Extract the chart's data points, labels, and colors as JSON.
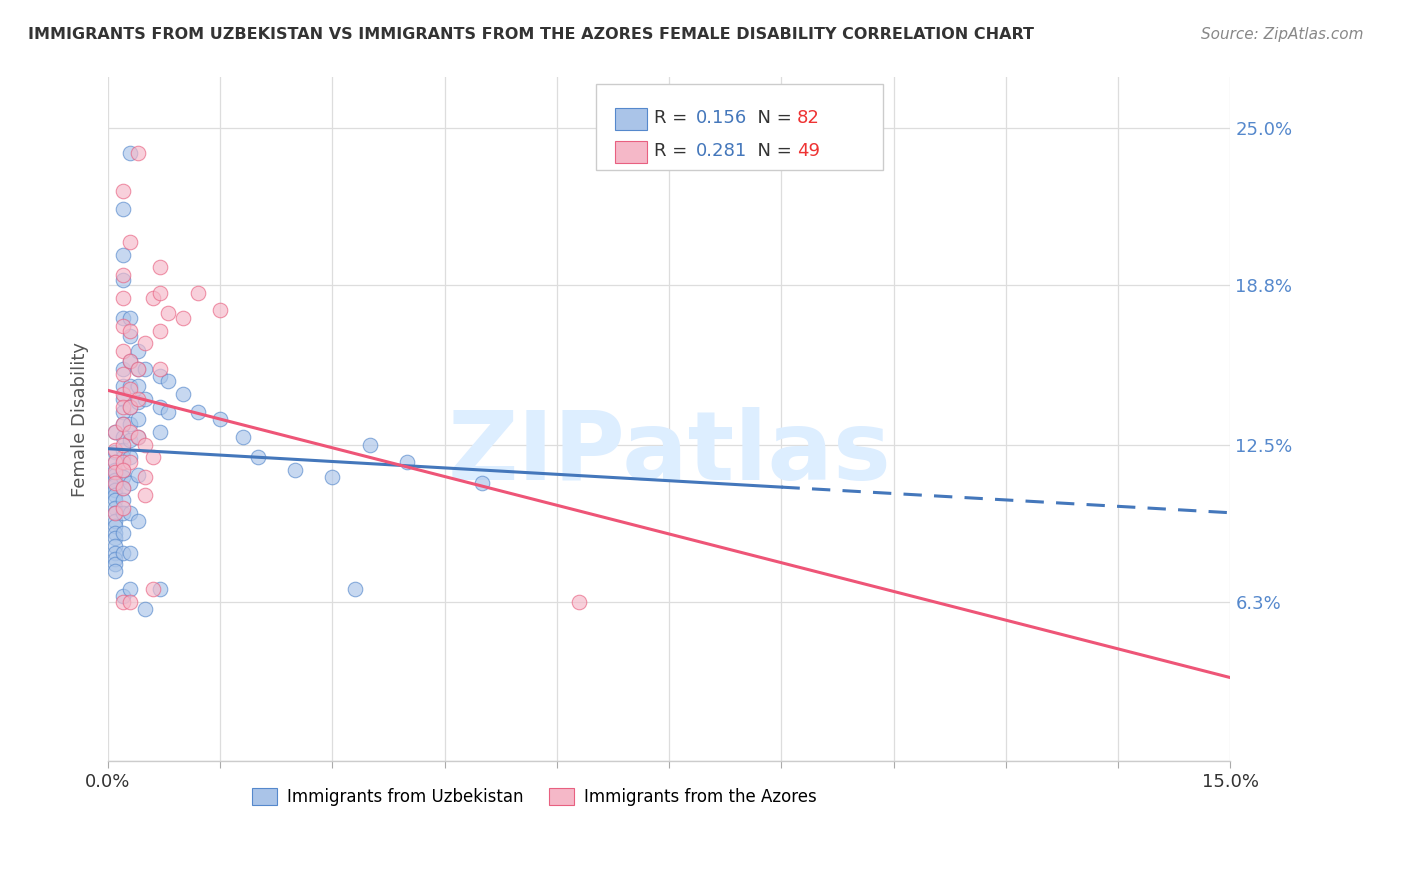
{
  "title": "IMMIGRANTS FROM UZBEKISTAN VS IMMIGRANTS FROM THE AZORES FEMALE DISABILITY CORRELATION CHART",
  "source": "Source: ZipAtlas.com",
  "ylabel": "Female Disability",
  "xlim": [
    0.0,
    0.15
  ],
  "ylim": [
    0.0,
    0.27
  ],
  "blue_R": "0.156",
  "blue_N": "82",
  "pink_R": "0.281",
  "pink_N": "49",
  "blue_color": "#aac4e8",
  "pink_color": "#f5b8c8",
  "blue_edge_color": "#5588cc",
  "pink_edge_color": "#e86080",
  "blue_line_color": "#4477BB",
  "pink_line_color": "#EE5577",
  "background_color": "#ffffff",
  "grid_color": "#dddddd",
  "blue_scatter_x": [
    0.001,
    0.001,
    0.001,
    0.001,
    0.001,
    0.001,
    0.001,
    0.001,
    0.001,
    0.001,
    0.001,
    0.001,
    0.001,
    0.001,
    0.001,
    0.001,
    0.001,
    0.001,
    0.001,
    0.001,
    0.001,
    0.002,
    0.002,
    0.002,
    0.002,
    0.002,
    0.002,
    0.002,
    0.002,
    0.002,
    0.002,
    0.002,
    0.002,
    0.002,
    0.002,
    0.002,
    0.002,
    0.002,
    0.002,
    0.002,
    0.002,
    0.003,
    0.003,
    0.003,
    0.003,
    0.003,
    0.003,
    0.003,
    0.003,
    0.003,
    0.003,
    0.003,
    0.003,
    0.003,
    0.004,
    0.004,
    0.004,
    0.004,
    0.004,
    0.004,
    0.004,
    0.004,
    0.005,
    0.005,
    0.005,
    0.007,
    0.007,
    0.007,
    0.007,
    0.008,
    0.008,
    0.01,
    0.012,
    0.015,
    0.018,
    0.02,
    0.025,
    0.03,
    0.033,
    0.035,
    0.04,
    0.05
  ],
  "blue_scatter_y": [
    0.13,
    0.122,
    0.118,
    0.115,
    0.113,
    0.111,
    0.109,
    0.107,
    0.105,
    0.103,
    0.1,
    0.098,
    0.095,
    0.093,
    0.09,
    0.088,
    0.085,
    0.082,
    0.08,
    0.078,
    0.075,
    0.218,
    0.2,
    0.19,
    0.175,
    0.155,
    0.148,
    0.143,
    0.138,
    0.133,
    0.128,
    0.123,
    0.12,
    0.115,
    0.112,
    0.108,
    0.103,
    0.098,
    0.09,
    0.082,
    0.065,
    0.24,
    0.175,
    0.168,
    0.158,
    0.148,
    0.14,
    0.133,
    0.127,
    0.12,
    0.11,
    0.098,
    0.082,
    0.068,
    0.162,
    0.155,
    0.148,
    0.142,
    0.135,
    0.128,
    0.113,
    0.095,
    0.155,
    0.143,
    0.06,
    0.152,
    0.14,
    0.13,
    0.068,
    0.15,
    0.138,
    0.145,
    0.138,
    0.135,
    0.128,
    0.12,
    0.115,
    0.112,
    0.068,
    0.125,
    0.118,
    0.11
  ],
  "pink_scatter_x": [
    0.001,
    0.001,
    0.001,
    0.001,
    0.001,
    0.001,
    0.002,
    0.002,
    0.002,
    0.002,
    0.002,
    0.002,
    0.002,
    0.002,
    0.002,
    0.002,
    0.002,
    0.002,
    0.002,
    0.002,
    0.003,
    0.003,
    0.003,
    0.003,
    0.003,
    0.003,
    0.003,
    0.003,
    0.004,
    0.004,
    0.004,
    0.004,
    0.005,
    0.005,
    0.005,
    0.005,
    0.006,
    0.006,
    0.006,
    0.007,
    0.007,
    0.007,
    0.007,
    0.008,
    0.01,
    0.012,
    0.015,
    0.063,
    0.002
  ],
  "pink_scatter_y": [
    0.13,
    0.123,
    0.118,
    0.114,
    0.11,
    0.098,
    0.225,
    0.192,
    0.183,
    0.172,
    0.162,
    0.153,
    0.145,
    0.14,
    0.133,
    0.125,
    0.118,
    0.108,
    0.1,
    0.063,
    0.205,
    0.17,
    0.158,
    0.147,
    0.14,
    0.13,
    0.118,
    0.063,
    0.24,
    0.155,
    0.143,
    0.128,
    0.165,
    0.125,
    0.112,
    0.105,
    0.183,
    0.12,
    0.068,
    0.195,
    0.185,
    0.17,
    0.155,
    0.177,
    0.175,
    0.185,
    0.178,
    0.063,
    0.115
  ]
}
